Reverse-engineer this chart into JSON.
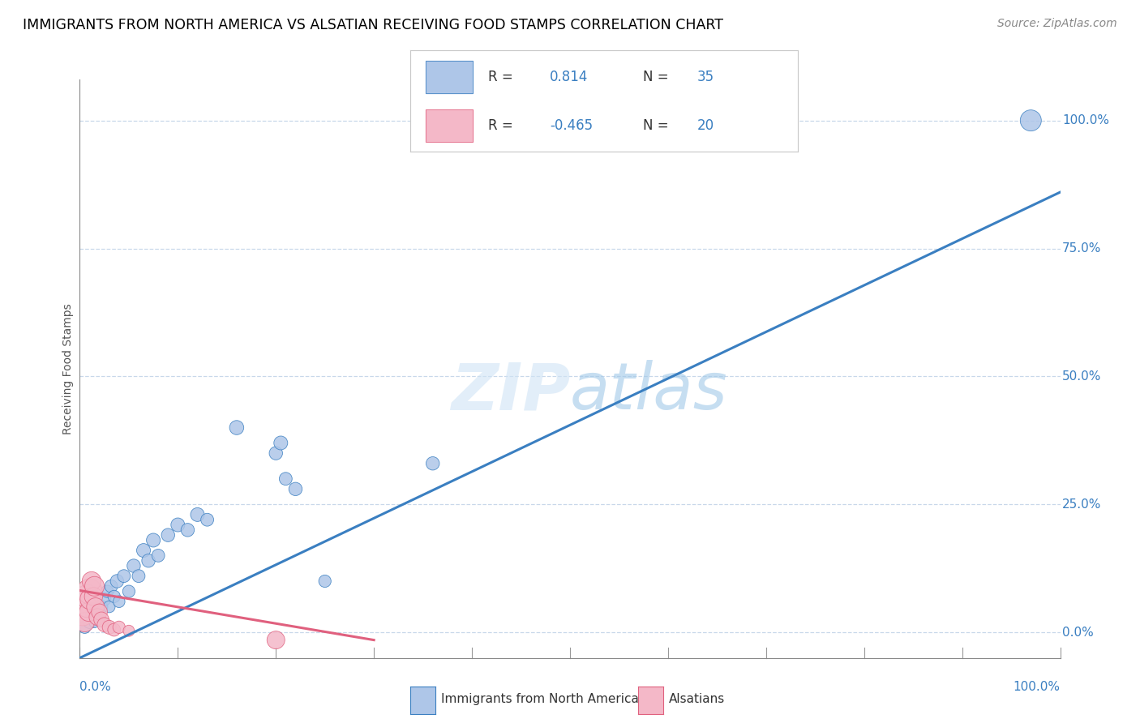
{
  "title": "IMMIGRANTS FROM NORTH AMERICA VS ALSATIAN RECEIVING FOOD STAMPS CORRELATION CHART",
  "source": "Source: ZipAtlas.com",
  "ylabel": "Receiving Food Stamps",
  "legend1_color": "#aec6e8",
  "legend2_color": "#f4b8c8",
  "trend1_color": "#3a7fc1",
  "trend2_color": "#e0607e",
  "background_color": "#ffffff",
  "grid_color": "#c8d8ea",
  "blue_dots": [
    [
      0.5,
      1.0
    ],
    [
      1.0,
      2.0
    ],
    [
      1.2,
      3.5
    ],
    [
      1.5,
      2.0
    ],
    [
      1.8,
      4.0
    ],
    [
      2.0,
      3.0
    ],
    [
      2.2,
      5.0
    ],
    [
      2.5,
      6.5
    ],
    [
      2.8,
      8.0
    ],
    [
      3.0,
      5.0
    ],
    [
      3.2,
      9.0
    ],
    [
      3.5,
      7.0
    ],
    [
      3.8,
      10.0
    ],
    [
      4.0,
      6.0
    ],
    [
      4.5,
      11.0
    ],
    [
      5.0,
      8.0
    ],
    [
      5.5,
      13.0
    ],
    [
      6.0,
      11.0
    ],
    [
      6.5,
      16.0
    ],
    [
      7.0,
      14.0
    ],
    [
      7.5,
      18.0
    ],
    [
      8.0,
      15.0
    ],
    [
      9.0,
      19.0
    ],
    [
      10.0,
      21.0
    ],
    [
      11.0,
      20.0
    ],
    [
      12.0,
      23.0
    ],
    [
      13.0,
      22.0
    ],
    [
      16.0,
      40.0
    ],
    [
      20.0,
      35.0
    ],
    [
      20.5,
      37.0
    ],
    [
      21.0,
      30.0
    ],
    [
      22.0,
      28.0
    ],
    [
      25.0,
      10.0
    ],
    [
      36.0,
      33.0
    ],
    [
      97.0,
      100.0
    ]
  ],
  "blue_sizes": [
    120,
    130,
    110,
    100,
    120,
    110,
    130,
    140,
    120,
    110,
    130,
    120,
    140,
    110,
    130,
    120,
    140,
    130,
    150,
    140,
    150,
    130,
    140,
    150,
    140,
    150,
    130,
    160,
    140,
    150,
    130,
    140,
    120,
    140,
    350
  ],
  "pink_dots": [
    [
      0.3,
      3.5
    ],
    [
      0.5,
      2.0
    ],
    [
      0.7,
      5.0
    ],
    [
      0.8,
      7.0
    ],
    [
      0.9,
      4.0
    ],
    [
      1.0,
      8.0
    ],
    [
      1.1,
      6.5
    ],
    [
      1.2,
      10.0
    ],
    [
      1.4,
      7.0
    ],
    [
      1.5,
      9.0
    ],
    [
      1.6,
      5.0
    ],
    [
      1.8,
      3.0
    ],
    [
      2.0,
      4.0
    ],
    [
      2.2,
      2.5
    ],
    [
      2.5,
      1.5
    ],
    [
      3.0,
      1.0
    ],
    [
      3.5,
      0.5
    ],
    [
      4.0,
      1.0
    ],
    [
      5.0,
      0.3
    ],
    [
      20.0,
      -1.5
    ]
  ],
  "pink_sizes": [
    400,
    300,
    350,
    450,
    280,
    500,
    350,
    280,
    260,
    300,
    250,
    220,
    200,
    180,
    160,
    150,
    130,
    120,
    100,
    250
  ],
  "xlim": [
    0,
    100
  ],
  "ylim": [
    -5,
    108
  ],
  "title_fontsize": 12.5,
  "source_fontsize": 10,
  "tick_fontsize": 11
}
